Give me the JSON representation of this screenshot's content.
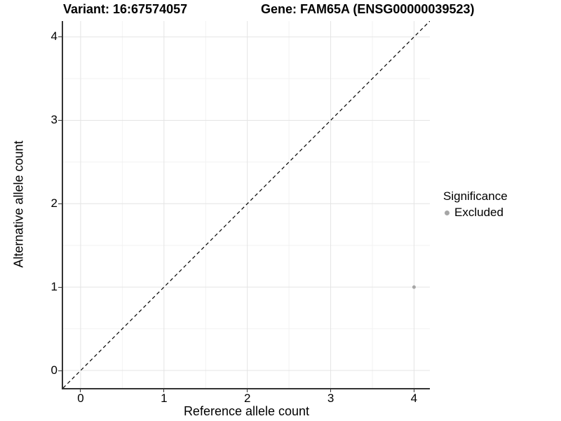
{
  "titles": {
    "variant": "Variant: 16:67574057",
    "gene": "Gene: FAM65A (ENSG00000039523)"
  },
  "axes": {
    "x_label": "Reference allele count",
    "y_label": "Alternative allele count"
  },
  "legend": {
    "title": "Significance",
    "items": [
      {
        "label": "Excluded",
        "color": "#a6a6a6"
      }
    ]
  },
  "colors": {
    "background": "#ffffff",
    "grid_major": "#e4e4e4",
    "grid_minor": "#f2f2f2",
    "axis_line": "#333333",
    "tick_mark": "#333333",
    "text": "#000000"
  },
  "chart_data": {
    "type": "scatter",
    "title": "Variant: 16:67574057 | Gene: FAM65A (ENSG00000039523)",
    "xlabel": "Reference allele count",
    "ylabel": "Alternative allele count",
    "xlim": [
      -0.21,
      4.19
    ],
    "ylim": [
      -0.21,
      4.19
    ],
    "xticks": [
      0,
      1,
      2,
      3,
      4
    ],
    "yticks": [
      0,
      1,
      2,
      3,
      4
    ],
    "x_minor": [
      0.5,
      1.5,
      2.5,
      3.5
    ],
    "y_minor": [
      0.5,
      1.5,
      2.5,
      3.5
    ],
    "grid": "major+minor",
    "legend_position": "right",
    "identity_line": {
      "style": "dashed",
      "color": "#000000",
      "from": -0.21,
      "to": 4.19
    },
    "series": [
      {
        "name": "Excluded",
        "color": "#a6a6a6",
        "marker": "circle",
        "marker_radius": 2.5,
        "points": [
          {
            "x": 4,
            "y": 1
          }
        ]
      }
    ]
  }
}
